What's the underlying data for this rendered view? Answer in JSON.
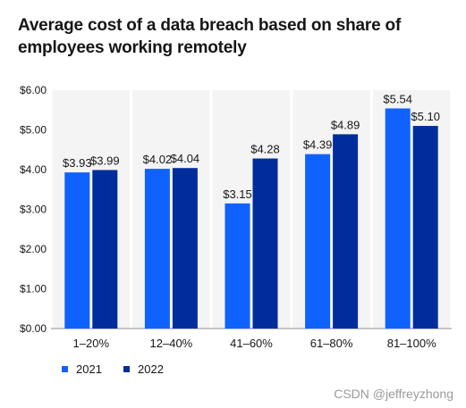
{
  "chart_data": {
    "type": "bar",
    "title": "Average cost of a data breach based on share of employees working remotely",
    "xlabel": "",
    "ylabel": "",
    "categories": [
      "1–20%",
      "12–40%",
      "41–60%",
      "61–80%",
      "81–100%"
    ],
    "ylim": [
      0,
      6
    ],
    "yticks": [
      "$0.00",
      "$1.00",
      "$2.00",
      "$3.00",
      "$4.00",
      "$5.00",
      "$6.00"
    ],
    "grid": "none",
    "legend_position": "bottom-left",
    "series": [
      {
        "name": "2021",
        "color": "#0f62fe",
        "values": [
          3.93,
          4.02,
          3.15,
          4.39,
          5.54
        ],
        "labels": [
          "$3.93",
          "$4.02",
          "$3.15",
          "$4.39",
          "$5.54"
        ]
      },
      {
        "name": "2022",
        "color": "#002d9c",
        "values": [
          3.99,
          4.04,
          4.28,
          4.89,
          5.1
        ],
        "labels": [
          "$3.99",
          "$4.04",
          "$4.28",
          "$4.89",
          "$5.10"
        ]
      }
    ]
  },
  "colors": {
    "panel_background": "#f4f4f4",
    "axis_line": "#8d8d8d",
    "text": "#161616",
    "watermark": "#9a9a9a"
  },
  "watermark": "CSDN @jeffreyzhong"
}
